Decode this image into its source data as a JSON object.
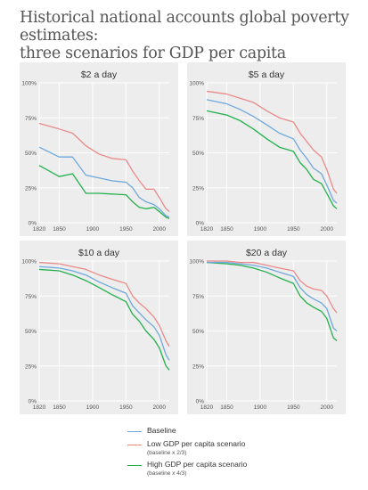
{
  "title_line1": "Historical national accounts global poverty estimates:",
  "title_line2": "three scenarios for GDP per capita",
  "colors": {
    "baseline": "#6fa8dc",
    "low": "#ea8a8a",
    "high": "#22b14c",
    "panel_bg": "#ededed",
    "grid": "#ffffff"
  },
  "legend": {
    "baseline_label": "Baseline",
    "low_label": "Low GDP per capita scenario",
    "low_sub": "(baseline x 2/3)",
    "high_label": "High GDP per capita scenario",
    "high_sub": "(baseline x 4/3)"
  },
  "chart_data": [
    {
      "type": "line",
      "title": "$2 a day",
      "xlim": [
        1820,
        2015
      ],
      "ylim": [
        0,
        100
      ],
      "x_ticks": [
        "1820",
        "1850",
        "1900",
        "1950",
        "2000"
      ],
      "y_ticks": [
        "0%",
        "25%",
        "50%",
        "75%",
        "100%"
      ],
      "x": [
        1820,
        1850,
        1870,
        1890,
        1910,
        1929,
        1950,
        1960,
        1970,
        1980,
        1992,
        2000,
        2010,
        2015
      ],
      "series": [
        {
          "name": "Baseline",
          "values": [
            54,
            47,
            47,
            34,
            32,
            30,
            29,
            25,
            18,
            15,
            13,
            10,
            5,
            4
          ]
        },
        {
          "name": "Low GDP per capita scenario",
          "values": [
            71,
            67,
            64,
            55,
            49,
            46,
            45,
            37,
            30,
            24,
            24,
            18,
            10,
            8
          ]
        },
        {
          "name": "High GDP per capita scenario",
          "values": [
            41,
            33,
            35,
            21,
            21,
            20.5,
            20,
            15,
            11,
            10,
            11,
            8,
            4,
            3
          ]
        }
      ]
    },
    {
      "type": "line",
      "title": "$5 a day",
      "xlim": [
        1820,
        2015
      ],
      "ylim": [
        0,
        100
      ],
      "x_ticks": [
        "1820",
        "1850",
        "1900",
        "1950",
        "2000"
      ],
      "y_ticks": [
        "0%",
        "25%",
        "50%",
        "75%",
        "100%"
      ],
      "x": [
        1820,
        1850,
        1870,
        1890,
        1910,
        1929,
        1950,
        1960,
        1970,
        1980,
        1992,
        2000,
        2010,
        2015
      ],
      "series": [
        {
          "name": "Baseline",
          "values": [
            88,
            85,
            81,
            76,
            70,
            64,
            60,
            52,
            46,
            39,
            35,
            27,
            16,
            14
          ]
        },
        {
          "name": "Low GDP per capita scenario",
          "values": [
            94,
            92,
            89,
            86,
            80,
            75,
            72,
            64,
            58,
            52,
            47,
            38,
            24,
            21
          ]
        },
        {
          "name": "High GDP per capita scenario",
          "values": [
            80,
            77,
            73,
            67,
            60,
            54,
            51,
            43,
            38,
            31,
            28,
            21,
            12,
            10
          ]
        }
      ]
    },
    {
      "type": "line",
      "title": "$10 a day",
      "xlim": [
        1820,
        2015
      ],
      "ylim": [
        0,
        100
      ],
      "x_ticks": [
        "1820",
        "1850",
        "1900",
        "1950",
        "2000"
      ],
      "y_ticks": [
        "0%",
        "25%",
        "50%",
        "75%",
        "100%"
      ],
      "x": [
        1820,
        1850,
        1870,
        1890,
        1910,
        1929,
        1950,
        1960,
        1970,
        1980,
        1992,
        2000,
        2010,
        2015
      ],
      "series": [
        {
          "name": "Baseline",
          "values": [
            96,
            95,
            93,
            90,
            85,
            81,
            77,
            68,
            63,
            58,
            53,
            47,
            33,
            29
          ]
        },
        {
          "name": "Low GDP per capita scenario",
          "values": [
            99,
            98,
            96,
            94,
            90,
            87,
            84,
            75,
            70,
            66,
            60,
            54,
            43,
            39
          ]
        },
        {
          "name": "High GDP per capita scenario",
          "values": [
            94,
            93,
            90,
            86,
            81,
            76,
            71,
            62,
            57,
            50,
            44,
            38,
            25,
            22
          ]
        }
      ]
    },
    {
      "type": "line",
      "title": "$20 a day",
      "xlim": [
        1820,
        2015
      ],
      "ylim": [
        0,
        100
      ],
      "x_ticks": [
        "1820",
        "1850",
        "1900",
        "1950",
        "2000"
      ],
      "y_ticks": [
        "0%",
        "25%",
        "50%",
        "75%",
        "100%"
      ],
      "x": [
        1820,
        1850,
        1870,
        1890,
        1910,
        1929,
        1950,
        1960,
        1970,
        1980,
        1992,
        2000,
        2010,
        2015
      ],
      "series": [
        {
          "name": "Baseline",
          "values": [
            99,
            99,
            98,
            97,
            95,
            92,
            89,
            81,
            76,
            73,
            70,
            66,
            52,
            50
          ]
        },
        {
          "name": "Low GDP per capita scenario",
          "values": [
            100,
            100,
            99,
            99,
            97,
            95,
            93,
            86,
            82,
            80,
            79,
            75,
            66,
            63
          ]
        },
        {
          "name": "High GDP per capita scenario",
          "values": [
            99,
            98,
            97,
            95,
            92,
            88,
            84,
            75,
            70,
            67,
            64,
            59,
            45,
            43
          ]
        }
      ]
    }
  ]
}
